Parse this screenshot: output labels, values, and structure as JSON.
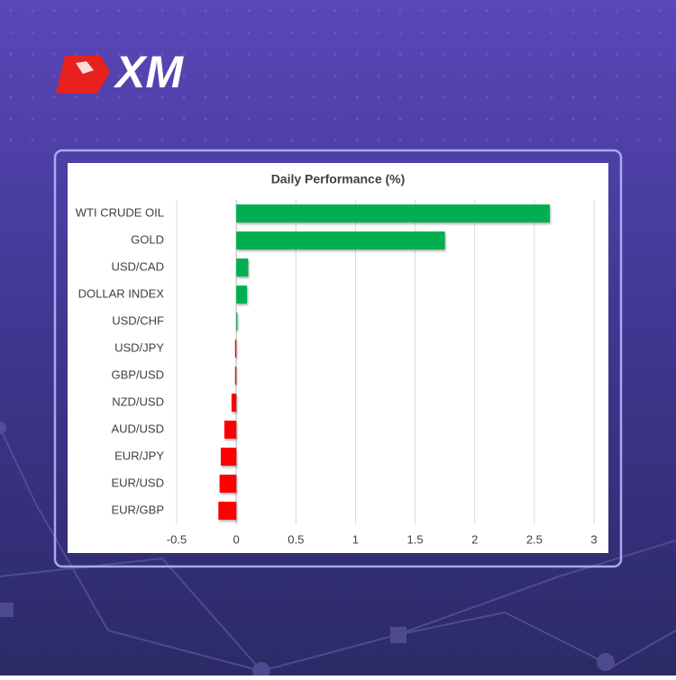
{
  "brand": "XM",
  "chart_data": {
    "type": "barh",
    "title": "Daily Performance (%)",
    "categories": [
      "WTI CRUDE OIL",
      "GOLD",
      "USD/CAD",
      "DOLLAR INDEX",
      "USD/CHF",
      "USD/JPY",
      "GBP/USD",
      "NZD/USD",
      "AUD/USD",
      "EUR/JPY",
      "EUR/USD",
      "EUR/GBP"
    ],
    "values": [
      2.63,
      1.75,
      0.1,
      0.09,
      0.01,
      -0.01,
      -0.01,
      -0.04,
      -0.1,
      -0.13,
      -0.14,
      -0.15
    ],
    "positive_color": "#00b050",
    "negative_color": "#ff0000",
    "xlim": [
      -0.5,
      3
    ],
    "xticks": [
      -0.5,
      0,
      0.5,
      1,
      1.5,
      2,
      2.5,
      3
    ],
    "grid": true
  }
}
